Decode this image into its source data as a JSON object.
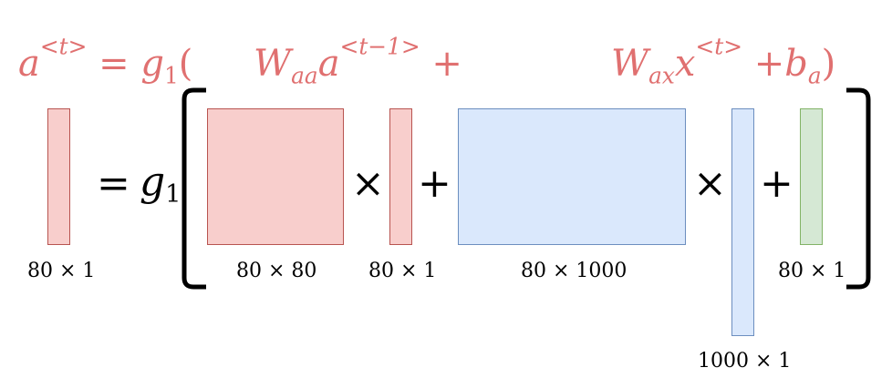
{
  "equation": {
    "lhs_var": "a",
    "lhs_sup": "<t>",
    "eq_sign": "=",
    "func": "g",
    "func_sub": "1",
    "open_paren": "(",
    "w_aa": "W",
    "w_aa_sub": "aa",
    "a_prev": "a",
    "a_prev_sup": "<t−1>",
    "plus_1": "+",
    "w_ax": "W",
    "w_ax_sub": "ax",
    "x_var": "x",
    "x_sup": "<t>",
    "plus_2": "+",
    "b_var": "b",
    "b_sub": "a",
    "close_paren": ")"
  },
  "diagram": {
    "equals": "=",
    "func": "g",
    "func_sub": "1",
    "times_1": "×",
    "plus_1": "+",
    "times_2": "×",
    "plus_2": "+"
  },
  "dims": {
    "a_t": "80 × 1",
    "w_aa": "80 × 80",
    "a_prev": "80 × 1",
    "w_ax": "80 × 1000",
    "x_t": "1000 × 1",
    "b_a": "80 × 1"
  },
  "colors": {
    "equation_text": "#e07070",
    "red_fill": "#f8cecc",
    "red_border": "#b85450",
    "blue_fill": "#dae8fc",
    "blue_border": "#6c8ebf",
    "green_fill": "#d5e8d4",
    "green_border": "#82b366"
  }
}
